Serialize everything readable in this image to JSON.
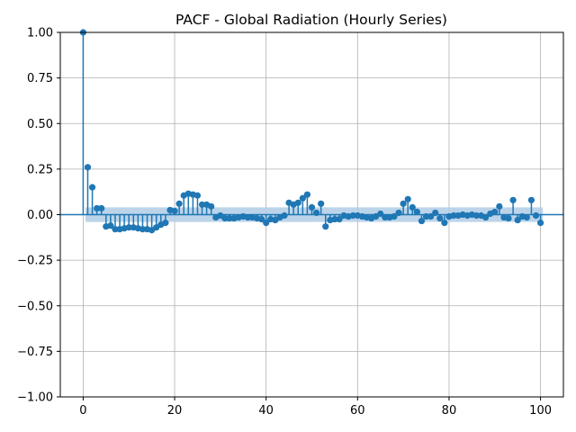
{
  "chart_data": {
    "type": "stem",
    "title": "PACF - Global Radiation (Hourly Series)",
    "xlabel": "",
    "ylabel": "",
    "xlim": [
      -5,
      105
    ],
    "ylim": [
      -1.0,
      1.0
    ],
    "xticks": [
      0,
      20,
      40,
      60,
      80,
      100
    ],
    "yticks": [
      -1.0,
      -0.75,
      -0.5,
      -0.25,
      0.0,
      0.25,
      0.5,
      0.75,
      1.0
    ],
    "ytick_labels": [
      "−1.00",
      "−0.75",
      "−0.50",
      "−0.25",
      "0.00",
      "0.25",
      "0.50",
      "0.75",
      "1.00"
    ],
    "xtick_labels": [
      "0",
      "20",
      "40",
      "60",
      "80",
      "100"
    ],
    "grid": true,
    "confidence_band": 0.04,
    "colors": {
      "stem": "#1f77b4",
      "band": "#b0cde6",
      "grid": "#b0b0b0",
      "zero_line": "#1f77b4"
    },
    "lags": [
      0,
      1,
      2,
      3,
      4,
      5,
      6,
      7,
      8,
      9,
      10,
      11,
      12,
      13,
      14,
      15,
      16,
      17,
      18,
      19,
      20,
      21,
      22,
      23,
      24,
      25,
      26,
      27,
      28,
      29,
      30,
      31,
      32,
      33,
      34,
      35,
      36,
      37,
      38,
      39,
      40,
      41,
      42,
      43,
      44,
      45,
      46,
      47,
      48,
      49,
      50,
      51,
      52,
      53,
      54,
      55,
      56,
      57,
      58,
      59,
      60,
      61,
      62,
      63,
      64,
      65,
      66,
      67,
      68,
      69,
      70,
      71,
      72,
      73,
      74,
      75,
      76,
      77,
      78,
      79,
      80,
      81,
      82,
      83,
      84,
      85,
      86,
      87,
      88,
      89,
      90,
      91,
      92,
      93,
      94,
      95,
      96,
      97,
      98,
      99,
      100
    ],
    "values": [
      1.0,
      0.26,
      0.15,
      0.035,
      0.035,
      -0.065,
      -0.06,
      -0.08,
      -0.08,
      -0.075,
      -0.07,
      -0.07,
      -0.075,
      -0.08,
      -0.08,
      -0.085,
      -0.07,
      -0.055,
      -0.045,
      0.025,
      0.02,
      0.06,
      0.105,
      0.115,
      0.11,
      0.105,
      0.055,
      0.055,
      0.045,
      -0.015,
      -0.005,
      -0.02,
      -0.02,
      -0.02,
      -0.015,
      -0.01,
      -0.015,
      -0.015,
      -0.02,
      -0.025,
      -0.045,
      -0.025,
      -0.03,
      -0.015,
      -0.005,
      0.065,
      0.055,
      0.065,
      0.09,
      0.11,
      0.04,
      0.01,
      0.06,
      -0.065,
      -0.03,
      -0.025,
      -0.025,
      -0.005,
      -0.01,
      -0.005,
      -0.005,
      -0.01,
      -0.015,
      -0.02,
      -0.01,
      0.005,
      -0.015,
      -0.015,
      -0.01,
      0.01,
      0.06,
      0.085,
      0.04,
      0.015,
      -0.035,
      -0.01,
      -0.01,
      0.01,
      -0.02,
      -0.045,
      -0.01,
      -0.005,
      -0.005,
      0.0,
      -0.005,
      0.0,
      -0.005,
      -0.005,
      -0.015,
      0.005,
      0.015,
      0.045,
      -0.015,
      -0.02,
      0.08,
      -0.03,
      -0.01,
      -0.015,
      0.08,
      -0.005,
      -0.045
    ]
  }
}
